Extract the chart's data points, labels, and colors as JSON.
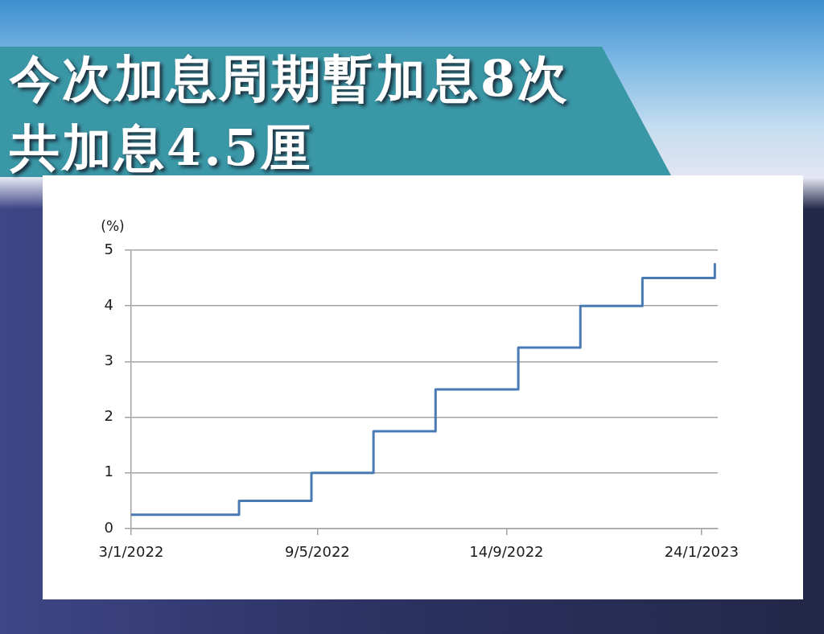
{
  "chart_data": {
    "type": "step",
    "title": "今次加息周期暫加息8次",
    "subtitle": "共加息4.5厘",
    "ylabel": "(%)",
    "x": [
      "2022-01-03",
      "2022-03-17",
      "2022-05-05",
      "2022-06-16",
      "2022-07-28",
      "2022-09-22",
      "2022-11-03",
      "2022-12-15",
      "2023-02-02"
    ],
    "series": [
      {
        "color": "#4a7ab4",
        "values": [
          0.25,
          0.5,
          1,
          1.75,
          2.5,
          3.25,
          4,
          4.5,
          4.75
        ]
      }
    ],
    "xlim": [
      "2022-01-03",
      "2023-02-04"
    ],
    "xticks": [
      {
        "value": "2022-01-03",
        "label": "3/1/2022"
      },
      {
        "value": "2022-05-09",
        "label": "9/5/2022"
      },
      {
        "value": "2022-09-14",
        "label": "14/9/2022"
      },
      {
        "value": "2023-01-24",
        "label": "24/1/2023"
      }
    ],
    "ylim": [
      0,
      5
    ],
    "yticks": [
      0,
      1,
      2,
      3,
      4,
      5
    ],
    "grid": "y",
    "legend": false,
    "marker": "none",
    "line_style": "solid"
  }
}
